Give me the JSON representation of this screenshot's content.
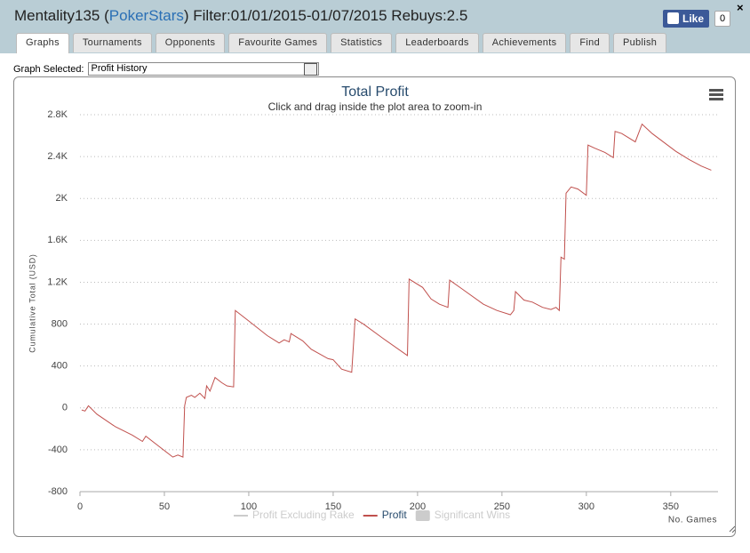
{
  "header": {
    "title_prefix": "Mentality135 (",
    "site": "PokerStars",
    "title_suffix": ") Filter:01/01/2015-01/07/2015 Rebuys:2.5"
  },
  "like": {
    "label": "Like",
    "count": 0
  },
  "tabs": [
    "Graphs",
    "Tournaments",
    "Opponents",
    "Favourite Games",
    "Statistics",
    "Leaderboards",
    "Achievements",
    "Find",
    "Publish"
  ],
  "active_tab": 0,
  "graph_selector": {
    "label": "Graph Selected:",
    "value": "Profit History"
  },
  "chart_data": {
    "type": "line",
    "title": "Total Profit",
    "subtitle": "Click and drag inside the plot area to zoom-in",
    "y_label": "Cumulative Total (USD)",
    "x_label": "No. Games",
    "xlim": [
      0,
      378
    ],
    "ylim": [
      -800,
      2800
    ],
    "xticks": [
      0,
      50,
      100,
      150,
      200,
      250,
      300,
      350
    ],
    "yticks": [
      -800,
      -400,
      0,
      400,
      800,
      {
        "value": 1200,
        "label": "1.2K"
      },
      {
        "value": 1600,
        "label": "1.6K"
      },
      {
        "value": 2000,
        "label": "2K"
      },
      {
        "value": 2400,
        "label": "2.4K"
      },
      {
        "value": 2800,
        "label": "2.8K"
      }
    ],
    "grid": true,
    "series": [
      {
        "name": "Profit",
        "color": "#c0504d",
        "x": [
          1,
          3,
          5,
          10,
          21,
          31,
          37,
          39,
          47,
          55,
          58,
          61,
          62,
          63,
          66,
          68,
          71,
          74,
          75,
          77,
          80,
          84,
          87,
          91,
          92,
          100,
          111,
          118,
          121,
          124,
          125,
          132,
          137,
          147,
          150,
          155,
          161,
          163,
          168,
          179,
          194,
          195,
          203,
          208,
          213,
          218,
          219,
          226,
          239,
          247,
          255,
          257,
          258,
          263,
          268,
          274,
          279,
          282,
          284,
          285,
          287,
          288,
          291,
          295,
          300,
          301,
          305,
          311,
          316,
          317,
          321,
          329,
          333,
          339,
          353,
          361,
          368,
          374
        ],
        "values": [
          -20,
          -30,
          20,
          -60,
          -180,
          -260,
          -320,
          -270,
          -370,
          -470,
          -450,
          -470,
          20,
          100,
          120,
          100,
          140,
          90,
          210,
          160,
          290,
          240,
          210,
          200,
          930,
          830,
          690,
          620,
          650,
          630,
          710,
          640,
          560,
          470,
          460,
          370,
          340,
          850,
          800,
          670,
          500,
          1230,
          1150,
          1040,
          990,
          960,
          1220,
          1140,
          990,
          930,
          890,
          930,
          1110,
          1030,
          1010,
          960,
          940,
          960,
          930,
          1440,
          1420,
          2050,
          2110,
          2090,
          2030,
          2510,
          2480,
          2440,
          2390,
          2640,
          2620,
          2540,
          2710,
          2620,
          2450,
          2370,
          2310,
          2270
        ]
      }
    ],
    "inactive_legend": [
      {
        "name": "Profit Excluding Rake",
        "symbol": "line"
      },
      {
        "name": "Significant Wins",
        "symbol": "box"
      }
    ]
  }
}
